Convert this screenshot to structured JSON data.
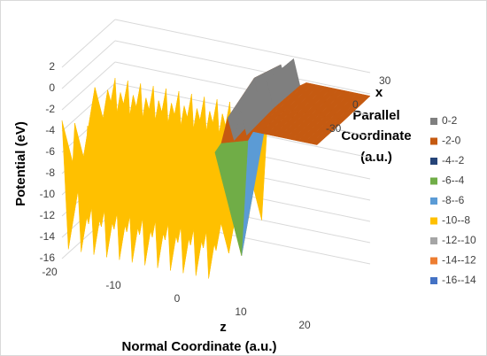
{
  "chart_data": {
    "type": "surface",
    "y_axis_label": "Potential (eV)",
    "z_axis_name": "z",
    "z_axis_label": "Normal Coordinate (a.u.)",
    "x_axis_name": "x",
    "x_axis_label_lines": [
      "Parallel",
      "Coordinate",
      "(a.u.)"
    ],
    "ylim": [
      -16,
      2
    ],
    "yticks": [
      2,
      0,
      -2,
      -4,
      -6,
      -8,
      -10,
      -12,
      -14,
      -16
    ],
    "zlim": [
      -20,
      20
    ],
    "zticks": [
      -20,
      -10,
      0,
      10,
      20
    ],
    "xlim": [
      -30,
      30
    ],
    "xticks": [
      30,
      0,
      -30
    ],
    "grid": true,
    "z": [
      -20,
      -19,
      -18,
      -17,
      -16,
      -15,
      -14,
      -13,
      -12,
      -11,
      -10,
      -9,
      -8,
      -7,
      -6,
      -5,
      -4,
      -3,
      -2,
      -1,
      0,
      1,
      2,
      3,
      4,
      5,
      6,
      7,
      8,
      9,
      10,
      11,
      12,
      13,
      14,
      15,
      16,
      17,
      18,
      19,
      20
    ],
    "x": [
      -30,
      0,
      30
    ],
    "values": [
      [
        -3,
        -15,
        -3,
        -15,
        -3,
        -15,
        -3,
        -15,
        -3,
        -15,
        -3,
        -15,
        -3,
        -15,
        -3,
        -15,
        -3,
        -15,
        -3,
        -15,
        -3,
        -15,
        -3,
        -15,
        -3,
        -2,
        0.5,
        -1.5,
        1.5,
        -0.8,
        -0.3,
        -0.3,
        -0.3,
        -0.3,
        -0.3,
        -0.3,
        -0.3,
        -0.3,
        -0.3,
        -0.3,
        -0.3
      ],
      [
        -15,
        -2,
        -15,
        -2,
        -15,
        -2,
        -15,
        -2,
        -15,
        -2,
        -15,
        -2,
        -15,
        -2,
        -15,
        -2,
        -15,
        -2,
        -15,
        -2,
        -15,
        -2,
        -15,
        -2,
        -15,
        -4,
        2,
        -1,
        2,
        -0.5,
        -0.3,
        -0.3,
        -0.3,
        -0.3,
        -0.3,
        -0.3,
        -0.3,
        -0.3,
        -0.3,
        -0.3,
        -0.3
      ],
      [
        -3.5,
        -14,
        -3.5,
        -14,
        -3.5,
        -14,
        -3.5,
        -14,
        -3.5,
        -14,
        -3.5,
        -14,
        -3.5,
        -14,
        -3.5,
        -14,
        -3.5,
        -14,
        -3.5,
        -14,
        -3.5,
        -14,
        -3.5,
        -14,
        -3.5,
        -2,
        1,
        -1,
        1.8,
        -0.6,
        -0.2,
        -0.2,
        -0.2,
        -0.2,
        -0.2,
        -0.2,
        -0.2,
        -0.2,
        -0.2,
        -0.2,
        -0.2
      ]
    ],
    "legend_position": "right",
    "bands": [
      {
        "name": "0-2",
        "color": "#7f7f7f",
        "min": 0,
        "max": 2
      },
      {
        "name": "-2-0",
        "color": "#c55a11",
        "min": -2,
        "max": 0
      },
      {
        "name": "-4--2",
        "color": "#264478",
        "min": -4,
        "max": -2
      },
      {
        "name": "-6--4",
        "color": "#70ad47",
        "min": -6,
        "max": -4
      },
      {
        "name": "-8--6",
        "color": "#5b9bd5",
        "min": -8,
        "max": -6
      },
      {
        "name": "-10--8",
        "color": "#ffc000",
        "min": -10,
        "max": -8
      },
      {
        "name": "-12--10",
        "color": "#a5a5a5",
        "min": -12,
        "max": -10
      },
      {
        "name": "-14--12",
        "color": "#ed7d31",
        "min": -14,
        "max": -12
      },
      {
        "name": "-16--14",
        "color": "#4472c4",
        "min": -16,
        "max": -14
      }
    ]
  }
}
